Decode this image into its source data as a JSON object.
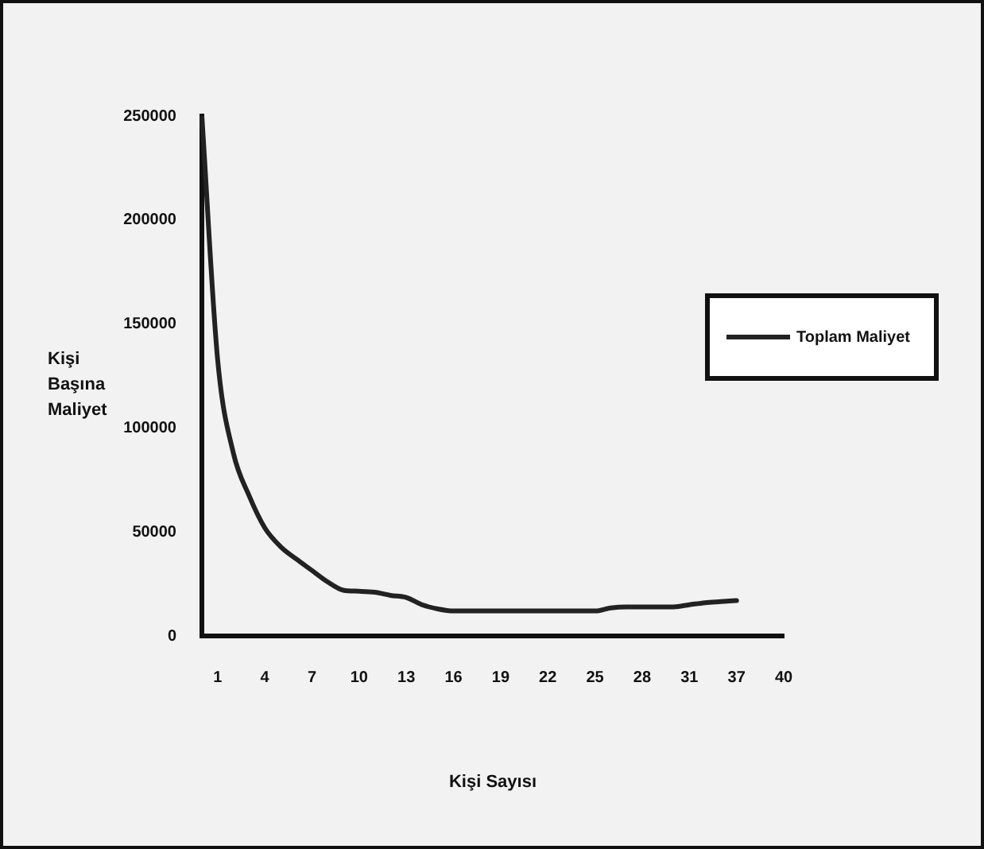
{
  "chart_data": {
    "type": "line",
    "xlabel": "Kişi Sayısı",
    "ylabel": "Kişi Başına Maliyet",
    "categories": [
      null,
      "1",
      null,
      null,
      "4",
      null,
      null,
      "7",
      null,
      null,
      "10",
      null,
      null,
      "13",
      null,
      null,
      "16",
      null,
      null,
      "19",
      null,
      null,
      "22",
      null,
      null,
      "25",
      null,
      null,
      "28",
      null,
      null,
      "31",
      null,
      null,
      "37",
      null,
      null,
      "40"
    ],
    "series": [
      {
        "name": "Toplam Maliyet",
        "color": "#222222",
        "values": [
          250000,
          133000,
          88000,
          67500,
          52000,
          43000,
          37000,
          31500,
          26000,
          22000,
          21500,
          21000,
          19500,
          18500,
          15000,
          13000,
          12000,
          12000,
          12000,
          12000,
          12000,
          12000,
          12000,
          12000,
          12000,
          12000,
          13500,
          14000,
          14000,
          14000,
          14000,
          15000,
          16000,
          16500,
          17000,
          null,
          null,
          null
        ]
      }
    ],
    "ylim": [
      0,
      250000
    ],
    "yticks": [
      0,
      50000,
      100000,
      150000,
      200000,
      250000
    ],
    "grid": false,
    "legend": "right",
    "marker": "none",
    "line_style": "solid"
  }
}
